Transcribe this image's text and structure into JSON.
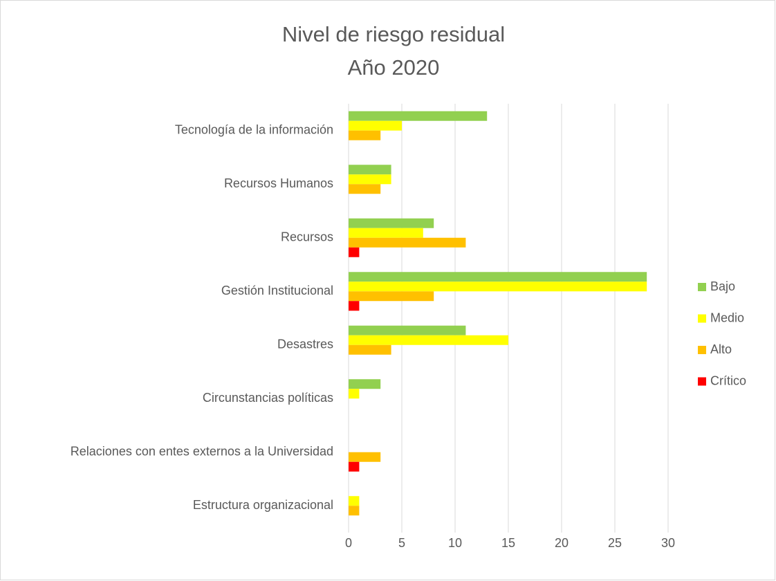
{
  "chart_data": {
    "type": "hbar",
    "title": "Nivel de riesgo residual",
    "subtitle": "Año 2020",
    "categories": [
      "Tecnología de la información",
      "Recursos Humanos",
      "Recursos",
      "Gestión Institucional",
      "Desastres",
      "Circunstancias políticas",
      "Relaciones con entes externos a la Universidad",
      "Estructura organizacional"
    ],
    "series": [
      {
        "name": "Bajo",
        "color": "#92d050",
        "values": [
          13,
          4,
          8,
          28,
          11,
          3,
          0,
          0
        ]
      },
      {
        "name": "Medio",
        "color": "#ffff00",
        "values": [
          5,
          4,
          7,
          28,
          15,
          1,
          0,
          1
        ]
      },
      {
        "name": "Alto",
        "color": "#ffc000",
        "values": [
          3,
          3,
          11,
          8,
          4,
          0,
          3,
          1
        ]
      },
      {
        "name": "Crítico",
        "color": "#ff0000",
        "values": [
          0,
          0,
          1,
          1,
          0,
          0,
          1,
          0
        ]
      }
    ],
    "xlim": [
      0,
      30
    ],
    "xticks": [
      0,
      5,
      10,
      15,
      20,
      25,
      30
    ],
    "grid": true,
    "legend": "right"
  }
}
